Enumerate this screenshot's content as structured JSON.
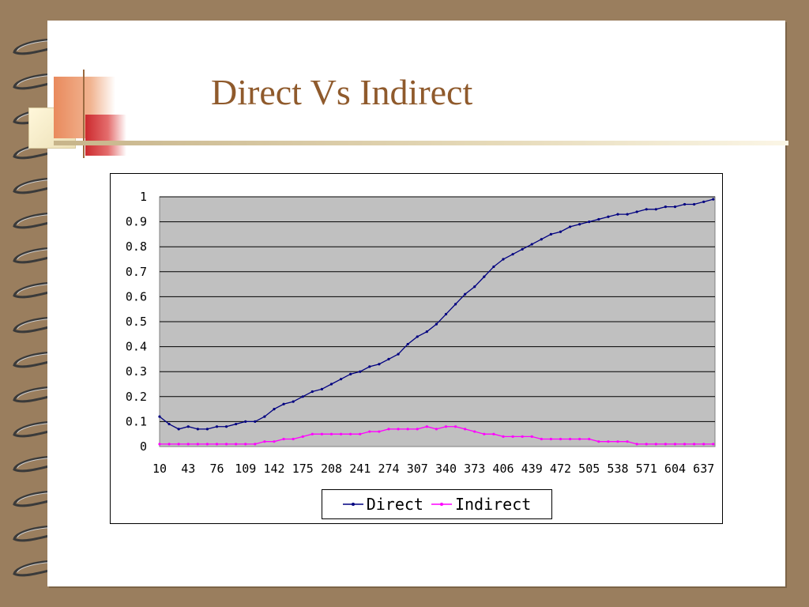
{
  "slide": {
    "title": "Direct Vs Indirect"
  },
  "colors": {
    "direct": "#000080",
    "indirect": "#ff00ff",
    "plot_background": "#c0c0c0",
    "title": "#8f5a2c"
  },
  "icons": [
    "spiral-binding-icon"
  ],
  "chart_data": {
    "type": "line",
    "title": "",
    "xlabel": "",
    "ylabel": "",
    "ylim": [
      0,
      1
    ],
    "yticks": [
      "0",
      "0.1",
      "0.2",
      "0.3",
      "0.4",
      "0.5",
      "0.6",
      "0.7",
      "0.8",
      "0.9",
      "1"
    ],
    "x_tick_labels": [
      "10",
      "43",
      "76",
      "109",
      "142",
      "175",
      "208",
      "241",
      "274",
      "307",
      "340",
      "373",
      "406",
      "439",
      "472",
      "505",
      "538",
      "571",
      "604",
      "637"
    ],
    "x_range": [
      10,
      650
    ],
    "grid": true,
    "legend": "bottom",
    "series": [
      {
        "name": "Direct",
        "x": [
          10,
          21,
          32,
          43,
          54,
          65,
          76,
          87,
          98,
          109,
          120,
          131,
          142,
          153,
          164,
          175,
          186,
          197,
          208,
          219,
          230,
          241,
          252,
          263,
          274,
          285,
          296,
          307,
          318,
          329,
          340,
          351,
          362,
          373,
          384,
          395,
          406,
          417,
          428,
          439,
          450,
          461,
          472,
          483,
          494,
          505,
          516,
          527,
          538,
          549,
          560,
          571,
          582,
          593,
          604,
          615,
          626,
          637,
          648
        ],
        "values": [
          0.12,
          0.09,
          0.07,
          0.08,
          0.07,
          0.07,
          0.08,
          0.08,
          0.09,
          0.1,
          0.1,
          0.12,
          0.15,
          0.17,
          0.18,
          0.2,
          0.22,
          0.23,
          0.25,
          0.27,
          0.29,
          0.3,
          0.32,
          0.33,
          0.35,
          0.37,
          0.41,
          0.44,
          0.46,
          0.49,
          0.53,
          0.57,
          0.61,
          0.64,
          0.68,
          0.72,
          0.75,
          0.77,
          0.79,
          0.81,
          0.83,
          0.85,
          0.86,
          0.88,
          0.89,
          0.9,
          0.91,
          0.92,
          0.93,
          0.93,
          0.94,
          0.95,
          0.95,
          0.96,
          0.96,
          0.97,
          0.97,
          0.98,
          0.99
        ]
      },
      {
        "name": "Indirect",
        "x": [
          10,
          21,
          32,
          43,
          54,
          65,
          76,
          87,
          98,
          109,
          120,
          131,
          142,
          153,
          164,
          175,
          186,
          197,
          208,
          219,
          230,
          241,
          252,
          263,
          274,
          285,
          296,
          307,
          318,
          329,
          340,
          351,
          362,
          373,
          384,
          395,
          406,
          417,
          428,
          439,
          450,
          461,
          472,
          483,
          494,
          505,
          516,
          527,
          538,
          549,
          560,
          571,
          582,
          593,
          604,
          615,
          626,
          637,
          648
        ],
        "values": [
          0.01,
          0.01,
          0.01,
          0.01,
          0.01,
          0.01,
          0.01,
          0.01,
          0.01,
          0.01,
          0.01,
          0.02,
          0.02,
          0.03,
          0.03,
          0.04,
          0.05,
          0.05,
          0.05,
          0.05,
          0.05,
          0.05,
          0.06,
          0.06,
          0.07,
          0.07,
          0.07,
          0.07,
          0.08,
          0.07,
          0.08,
          0.08,
          0.07,
          0.06,
          0.05,
          0.05,
          0.04,
          0.04,
          0.04,
          0.04,
          0.03,
          0.03,
          0.03,
          0.03,
          0.03,
          0.03,
          0.02,
          0.02,
          0.02,
          0.02,
          0.01,
          0.01,
          0.01,
          0.01,
          0.01,
          0.01,
          0.01,
          0.01,
          0.01
        ]
      }
    ]
  }
}
